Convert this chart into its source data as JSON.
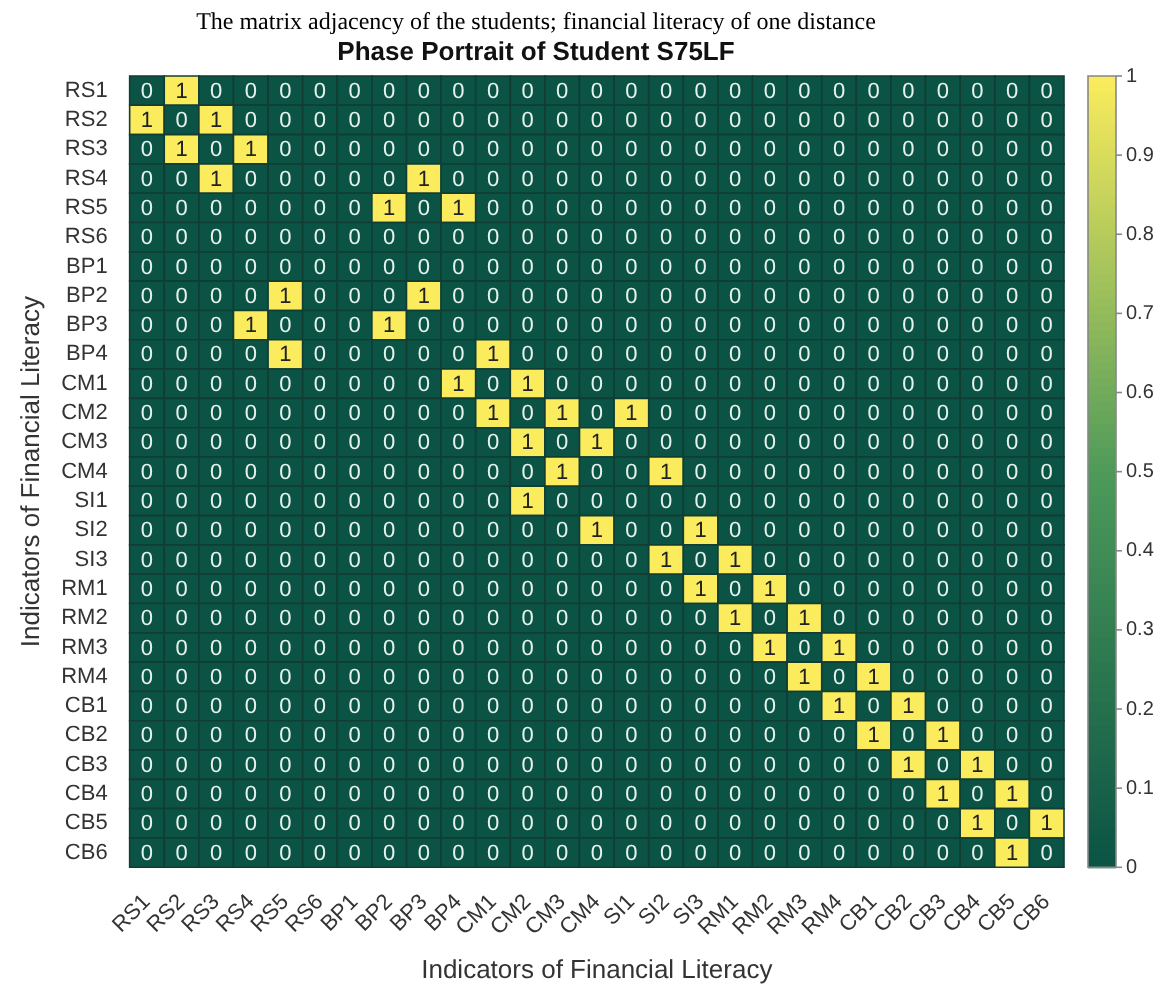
{
  "chart_data": {
    "type": "heatmap",
    "subtitle": "The matrix adjacency of the students; financial literacy of one distance",
    "title": "Phase Portrait of Student S75LF",
    "xlabel": "Indicators of Financial Literacy",
    "ylabel": "Indicators of Financial Literacy",
    "categories": [
      "RS1",
      "RS2",
      "RS3",
      "RS4",
      "RS5",
      "RS6",
      "BP1",
      "BP2",
      "BP3",
      "BP4",
      "CM1",
      "CM2",
      "CM3",
      "CM4",
      "SI1",
      "SI2",
      "SI3",
      "RM1",
      "RM2",
      "RM3",
      "RM4",
      "CB1",
      "CB2",
      "CB3",
      "CB4",
      "CB5",
      "CB6"
    ],
    "y_categories": [
      "RS1",
      "RS2",
      "RS3",
      "RS4",
      "RS5",
      "RS6",
      "BP1",
      "BP2",
      "BP3",
      "BP4",
      "CM1",
      "CM2",
      "CM3",
      "CM4",
      "SI1",
      "SI2",
      "SI3",
      "RM1",
      "RM2",
      "RM3",
      "RM4",
      "CB1",
      "CB2",
      "CB3",
      "CB4",
      "CB5",
      "CB6"
    ],
    "cells": [
      [
        0,
        1,
        0,
        0,
        0,
        0,
        0,
        0,
        0,
        0,
        0,
        0,
        0,
        0,
        0,
        0,
        0,
        0,
        0,
        0,
        0,
        0,
        0,
        0,
        0,
        0,
        0
      ],
      [
        1,
        0,
        1,
        0,
        0,
        0,
        0,
        0,
        0,
        0,
        0,
        0,
        0,
        0,
        0,
        0,
        0,
        0,
        0,
        0,
        0,
        0,
        0,
        0,
        0,
        0,
        0
      ],
      [
        0,
        1,
        0,
        1,
        0,
        0,
        0,
        0,
        0,
        0,
        0,
        0,
        0,
        0,
        0,
        0,
        0,
        0,
        0,
        0,
        0,
        0,
        0,
        0,
        0,
        0,
        0
      ],
      [
        0,
        0,
        1,
        0,
        0,
        0,
        0,
        0,
        1,
        0,
        0,
        0,
        0,
        0,
        0,
        0,
        0,
        0,
        0,
        0,
        0,
        0,
        0,
        0,
        0,
        0,
        0
      ],
      [
        0,
        0,
        0,
        0,
        0,
        0,
        0,
        1,
        0,
        1,
        0,
        0,
        0,
        0,
        0,
        0,
        0,
        0,
        0,
        0,
        0,
        0,
        0,
        0,
        0,
        0,
        0
      ],
      [
        0,
        0,
        0,
        0,
        0,
        0,
        0,
        0,
        0,
        0,
        0,
        0,
        0,
        0,
        0,
        0,
        0,
        0,
        0,
        0,
        0,
        0,
        0,
        0,
        0,
        0,
        0
      ],
      [
        0,
        0,
        0,
        0,
        0,
        0,
        0,
        0,
        0,
        0,
        0,
        0,
        0,
        0,
        0,
        0,
        0,
        0,
        0,
        0,
        0,
        0,
        0,
        0,
        0,
        0,
        0
      ],
      [
        0,
        0,
        0,
        0,
        1,
        0,
        0,
        0,
        1,
        0,
        0,
        0,
        0,
        0,
        0,
        0,
        0,
        0,
        0,
        0,
        0,
        0,
        0,
        0,
        0,
        0,
        0
      ],
      [
        0,
        0,
        0,
        1,
        0,
        0,
        0,
        1,
        0,
        0,
        0,
        0,
        0,
        0,
        0,
        0,
        0,
        0,
        0,
        0,
        0,
        0,
        0,
        0,
        0,
        0,
        0
      ],
      [
        0,
        0,
        0,
        0,
        1,
        0,
        0,
        0,
        0,
        0,
        1,
        0,
        0,
        0,
        0,
        0,
        0,
        0,
        0,
        0,
        0,
        0,
        0,
        0,
        0,
        0,
        0
      ],
      [
        0,
        0,
        0,
        0,
        0,
        0,
        0,
        0,
        0,
        1,
        0,
        1,
        0,
        0,
        0,
        0,
        0,
        0,
        0,
        0,
        0,
        0,
        0,
        0,
        0,
        0,
        0
      ],
      [
        0,
        0,
        0,
        0,
        0,
        0,
        0,
        0,
        0,
        0,
        1,
        0,
        1,
        0,
        1,
        0,
        0,
        0,
        0,
        0,
        0,
        0,
        0,
        0,
        0,
        0,
        0
      ],
      [
        0,
        0,
        0,
        0,
        0,
        0,
        0,
        0,
        0,
        0,
        0,
        1,
        0,
        1,
        0,
        0,
        0,
        0,
        0,
        0,
        0,
        0,
        0,
        0,
        0,
        0,
        0
      ],
      [
        0,
        0,
        0,
        0,
        0,
        0,
        0,
        0,
        0,
        0,
        0,
        0,
        1,
        0,
        0,
        1,
        0,
        0,
        0,
        0,
        0,
        0,
        0,
        0,
        0,
        0,
        0
      ],
      [
        0,
        0,
        0,
        0,
        0,
        0,
        0,
        0,
        0,
        0,
        0,
        1,
        0,
        0,
        0,
        0,
        0,
        0,
        0,
        0,
        0,
        0,
        0,
        0,
        0,
        0,
        0
      ],
      [
        0,
        0,
        0,
        0,
        0,
        0,
        0,
        0,
        0,
        0,
        0,
        0,
        0,
        1,
        0,
        0,
        1,
        0,
        0,
        0,
        0,
        0,
        0,
        0,
        0,
        0,
        0
      ],
      [
        0,
        0,
        0,
        0,
        0,
        0,
        0,
        0,
        0,
        0,
        0,
        0,
        0,
        0,
        0,
        1,
        0,
        1,
        0,
        0,
        0,
        0,
        0,
        0,
        0,
        0,
        0
      ],
      [
        0,
        0,
        0,
        0,
        0,
        0,
        0,
        0,
        0,
        0,
        0,
        0,
        0,
        0,
        0,
        0,
        1,
        0,
        1,
        0,
        0,
        0,
        0,
        0,
        0,
        0,
        0
      ],
      [
        0,
        0,
        0,
        0,
        0,
        0,
        0,
        0,
        0,
        0,
        0,
        0,
        0,
        0,
        0,
        0,
        0,
        1,
        0,
        1,
        0,
        0,
        0,
        0,
        0,
        0,
        0
      ],
      [
        0,
        0,
        0,
        0,
        0,
        0,
        0,
        0,
        0,
        0,
        0,
        0,
        0,
        0,
        0,
        0,
        0,
        0,
        1,
        0,
        1,
        0,
        0,
        0,
        0,
        0,
        0
      ],
      [
        0,
        0,
        0,
        0,
        0,
        0,
        0,
        0,
        0,
        0,
        0,
        0,
        0,
        0,
        0,
        0,
        0,
        0,
        0,
        1,
        0,
        1,
        0,
        0,
        0,
        0,
        0
      ],
      [
        0,
        0,
        0,
        0,
        0,
        0,
        0,
        0,
        0,
        0,
        0,
        0,
        0,
        0,
        0,
        0,
        0,
        0,
        0,
        0,
        1,
        0,
        1,
        0,
        0,
        0,
        0
      ],
      [
        0,
        0,
        0,
        0,
        0,
        0,
        0,
        0,
        0,
        0,
        0,
        0,
        0,
        0,
        0,
        0,
        0,
        0,
        0,
        0,
        0,
        1,
        0,
        1,
        0,
        0,
        0
      ],
      [
        0,
        0,
        0,
        0,
        0,
        0,
        0,
        0,
        0,
        0,
        0,
        0,
        0,
        0,
        0,
        0,
        0,
        0,
        0,
        0,
        0,
        0,
        1,
        0,
        1,
        0,
        0
      ],
      [
        0,
        0,
        0,
        0,
        0,
        0,
        0,
        0,
        0,
        0,
        0,
        0,
        0,
        0,
        0,
        0,
        0,
        0,
        0,
        0,
        0,
        0,
        0,
        1,
        0,
        1,
        0
      ],
      [
        0,
        0,
        0,
        0,
        0,
        0,
        0,
        0,
        0,
        0,
        0,
        0,
        0,
        0,
        0,
        0,
        0,
        0,
        0,
        0,
        0,
        0,
        0,
        0,
        1,
        0,
        1
      ],
      [
        0,
        0,
        0,
        0,
        0,
        0,
        0,
        0,
        0,
        0,
        0,
        0,
        0,
        0,
        0,
        0,
        0,
        0,
        0,
        0,
        0,
        0,
        0,
        0,
        0,
        1,
        0
      ]
    ],
    "clim": [
      0,
      1
    ],
    "cticks": [
      0,
      0.1,
      0.2,
      0.3,
      0.4,
      0.5,
      0.6,
      0.7,
      0.8,
      0.9,
      1
    ],
    "data_labels": true
  }
}
